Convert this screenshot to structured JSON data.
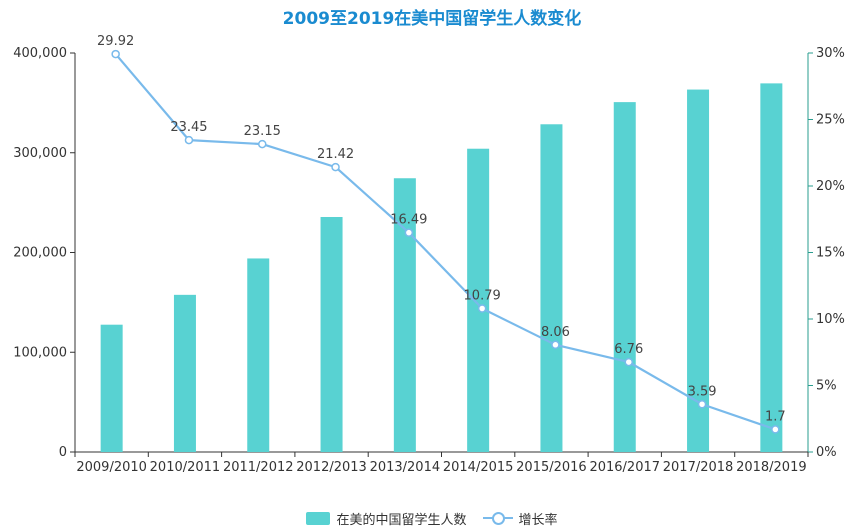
{
  "chart_data": {
    "title": "2009至2019在美中国留学生人数变化",
    "type": "bar",
    "categories": [
      "2009/2010",
      "2010/2011",
      "2011/2012",
      "2012/2013",
      "2013/2014",
      "2014/2015",
      "2015/2016",
      "2016/2017",
      "2017/2018",
      "2018/2019"
    ],
    "series": [
      {
        "name": "在美的中国留学生人数",
        "type": "bar",
        "axis": "left",
        "color": "#58d2d2",
        "values": [
          127628,
          157558,
          194029,
          235597,
          274439,
          304040,
          328547,
          350755,
          363341,
          369548
        ]
      },
      {
        "name": "增长率",
        "type": "line",
        "axis": "right",
        "color": "#79baeb",
        "values": [
          29.92,
          23.45,
          23.15,
          21.42,
          16.49,
          10.79,
          8.06,
          6.76,
          3.59,
          1.7
        ],
        "labels": [
          "29.92",
          "23.45",
          "23.15",
          "21.42",
          "16.49",
          "10.79",
          "8.06",
          "6.76",
          "3.59",
          "1.7"
        ]
      }
    ],
    "y_left": {
      "min": 0,
      "max": 400000,
      "ticks": [
        0,
        100000,
        200000,
        300000,
        400000
      ],
      "tick_labels": [
        "0",
        "100,000",
        "200,000",
        "300,000",
        "400,000"
      ],
      "color": "#333333"
    },
    "y_right": {
      "min": 0,
      "max": 30,
      "ticks": [
        0,
        5,
        10,
        15,
        20,
        25,
        30
      ],
      "tick_labels": [
        "0%",
        "5%",
        "10%",
        "15%",
        "20%",
        "25%",
        "30%"
      ],
      "color": "#2a9d8f"
    },
    "grid": false,
    "legend": "bottom-center"
  }
}
